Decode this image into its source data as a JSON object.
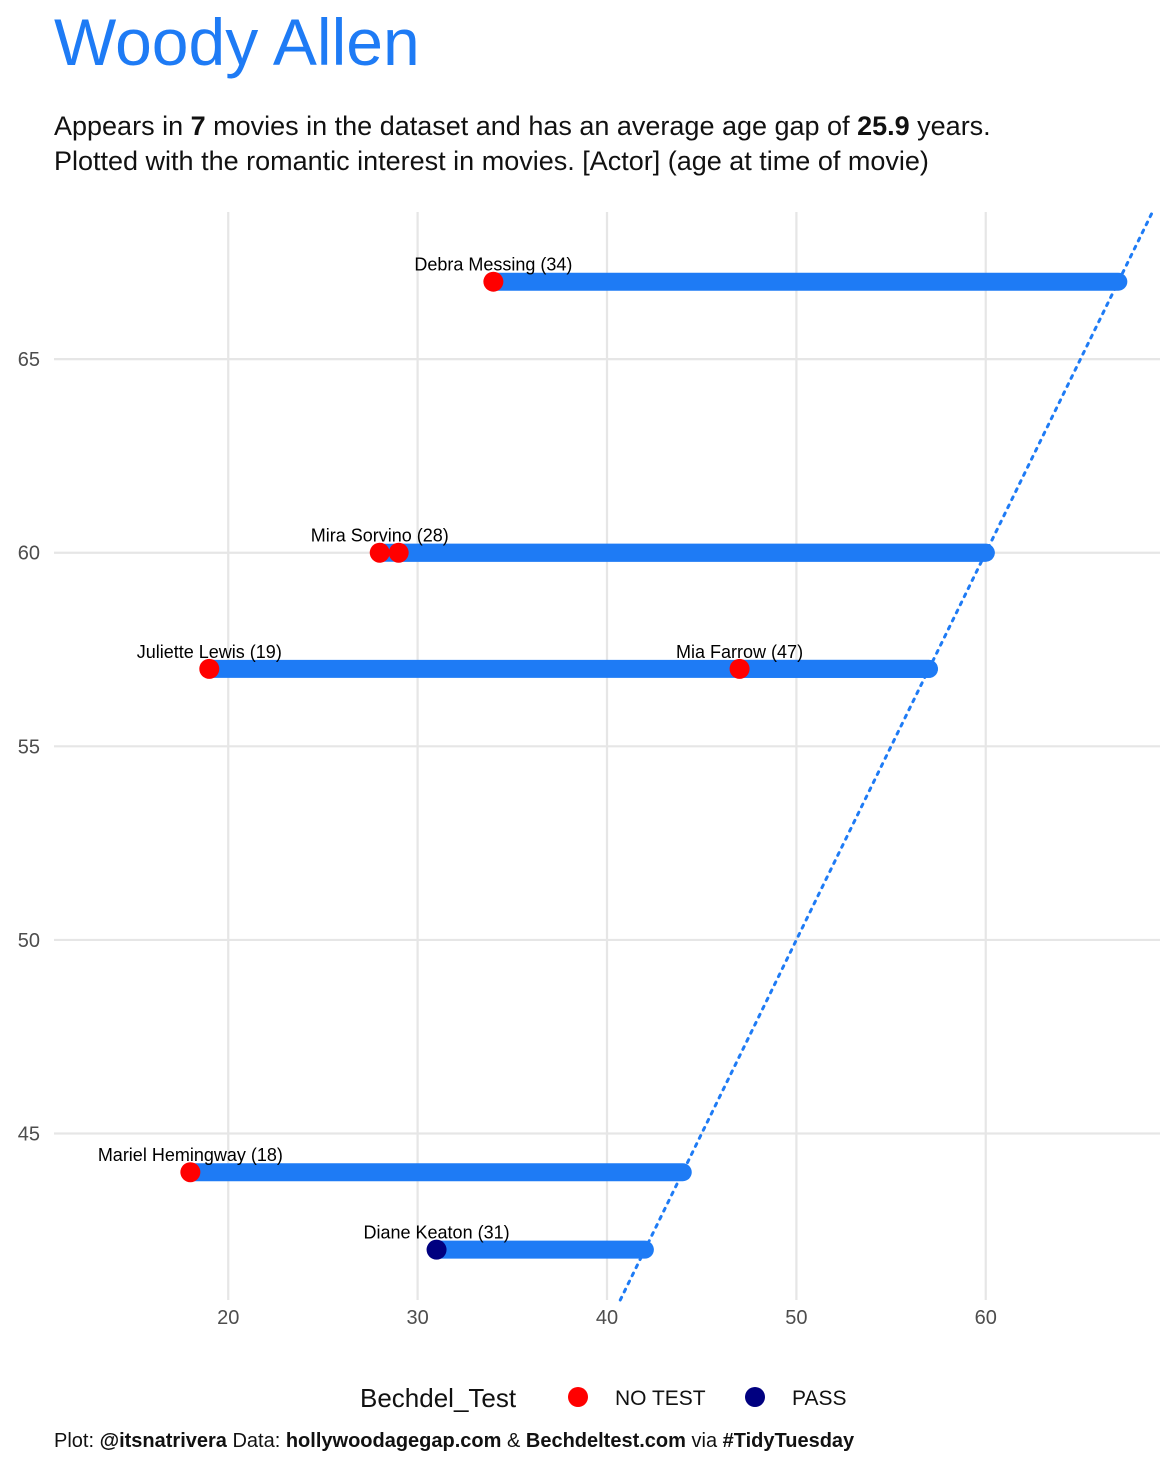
{
  "title": "Woody Allen",
  "subtitle": {
    "line1_pre": "Appears in ",
    "line1_movies": "7",
    "line1_mid": " movies in the dataset and has an average age gap of ",
    "line1_gap": "25.9",
    "line1_post": " years.",
    "line2": "Plotted with the romantic interest in movies. [Actor] (age at time of movie)"
  },
  "chart_data": {
    "type": "dumbbell",
    "x_ticks": [
      20,
      30,
      40,
      50,
      60
    ],
    "y_ticks": [
      45,
      50,
      55,
      60,
      65
    ],
    "xlim": [
      10.8,
      69.2
    ],
    "ylim": [
      40.7,
      68.8
    ],
    "colors": {
      "segment": "#1E7BF5",
      "NO TEST": "#FF0000",
      "PASS": "#000080",
      "reference_line": "#1E7BF5"
    },
    "reference_line": {
      "style": "dotted",
      "slope": 1,
      "intercept": 0
    },
    "movies": [
      {
        "actor_age": 67,
        "partner_age": 34,
        "bechdel": "NO TEST"
      },
      {
        "actor_age": 60,
        "partner_age": 28,
        "bechdel": "NO TEST"
      },
      {
        "actor_age": 60,
        "partner_age": 29,
        "bechdel": "NO TEST"
      },
      {
        "actor_age": 57,
        "partner_age": 19,
        "bechdel": "NO TEST"
      },
      {
        "actor_age": 57,
        "partner_age": 47,
        "bechdel": "NO TEST"
      },
      {
        "actor_age": 44,
        "partner_age": 18,
        "bechdel": "NO TEST"
      },
      {
        "actor_age": 42,
        "partner_age": 31,
        "bechdel": "PASS"
      }
    ],
    "labels": [
      {
        "text": "Debra Messing (34)",
        "x": 34,
        "y": 67
      },
      {
        "text": "Mira Sorvino (28)",
        "x": 28,
        "y": 60
      },
      {
        "text": "Juliette Lewis (19)",
        "x": 19,
        "y": 57
      },
      {
        "text": "Mia Farrow (47)",
        "x": 47,
        "y": 57
      },
      {
        "text": "Mariel Hemingway (18)",
        "x": 18,
        "y": 44
      },
      {
        "text": "Diane Keaton (31)",
        "x": 31,
        "y": 42
      }
    ],
    "legend": {
      "title": "Bechdel_Test",
      "position": "bottom",
      "entries": [
        "NO TEST",
        "PASS"
      ]
    }
  },
  "caption": {
    "p1": "Plot: ",
    "b1": "@itsnatrivera",
    "p2": " Data: ",
    "b2": "hollywoodagegap.com",
    "p3": " & ",
    "b3": "Bechdeltest.com",
    "p4": " via ",
    "b4": "#TidyTuesday"
  }
}
